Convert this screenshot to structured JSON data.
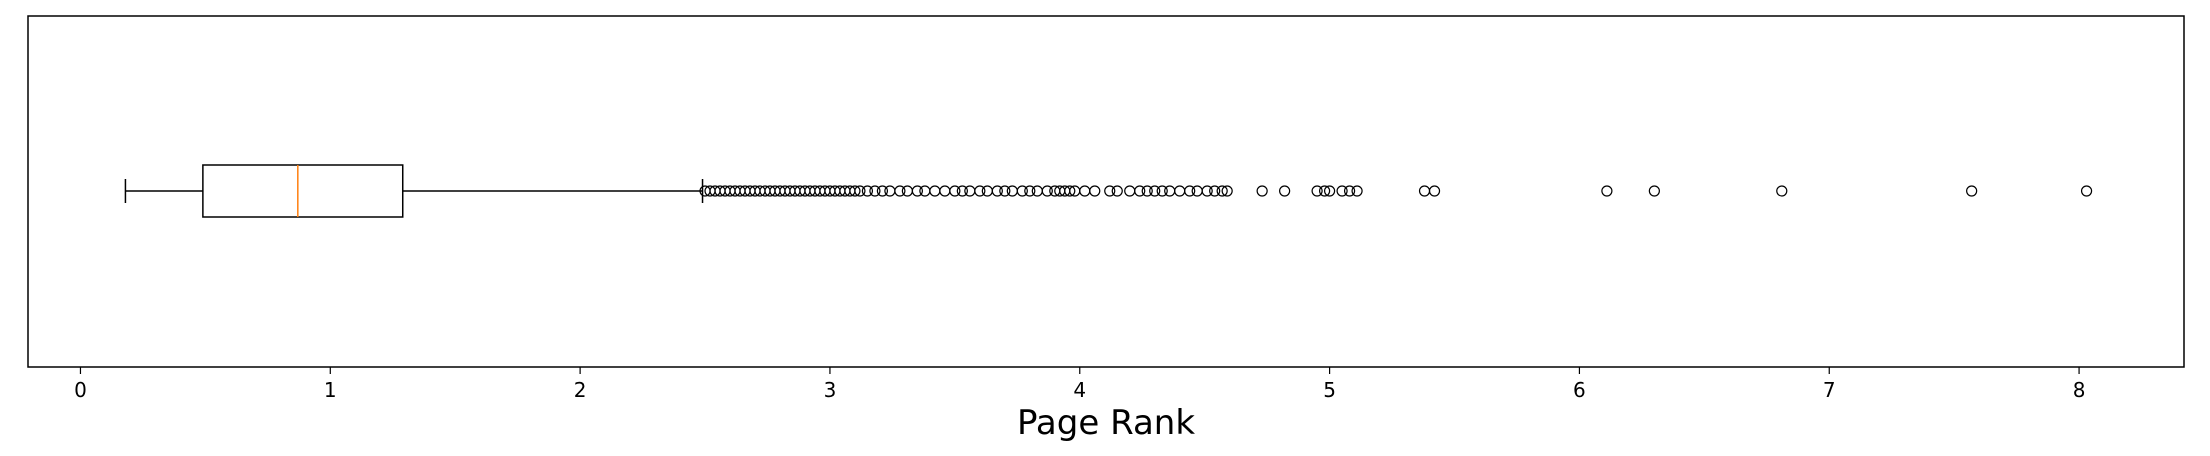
{
  "chart_data": {
    "type": "boxplot",
    "orientation": "horizontal",
    "xlabel": "Page Rank",
    "ylabel": "",
    "title": "",
    "xlim": [
      -0.21,
      8.42
    ],
    "xticks": [
      {
        "value": 0,
        "label": "0"
      },
      {
        "value": 1,
        "label": "1"
      },
      {
        "value": 2,
        "label": "2"
      },
      {
        "value": 3,
        "label": "3"
      },
      {
        "value": 4,
        "label": "4"
      },
      {
        "value": 5,
        "label": "5"
      },
      {
        "value": 6,
        "label": "6"
      },
      {
        "value": 7,
        "label": "7"
      },
      {
        "value": 8,
        "label": "8"
      }
    ],
    "grid": false,
    "box": {
      "whisker_low": 0.18,
      "q1": 0.49,
      "median": 0.87,
      "q3": 1.29,
      "whisker_high": 2.49
    },
    "colors": {
      "box": "#000000",
      "median": "#ff7f0e",
      "outlier": "#000000"
    },
    "outliers": [
      2.5,
      2.52,
      2.54,
      2.56,
      2.58,
      2.6,
      2.62,
      2.64,
      2.66,
      2.68,
      2.7,
      2.72,
      2.74,
      2.76,
      2.78,
      2.8,
      2.82,
      2.84,
      2.86,
      2.88,
      2.9,
      2.92,
      2.94,
      2.96,
      2.98,
      3.0,
      3.02,
      3.04,
      3.06,
      3.08,
      3.1,
      3.12,
      3.15,
      3.18,
      3.21,
      3.24,
      3.28,
      3.31,
      3.35,
      3.38,
      3.42,
      3.46,
      3.5,
      3.53,
      3.56,
      3.6,
      3.63,
      3.67,
      3.7,
      3.73,
      3.77,
      3.8,
      3.83,
      3.87,
      3.9,
      3.92,
      3.94,
      3.96,
      3.98,
      4.02,
      4.06,
      4.12,
      4.15,
      4.2,
      4.24,
      4.27,
      4.3,
      4.33,
      4.36,
      4.4,
      4.44,
      4.47,
      4.51,
      4.54,
      4.57,
      4.59,
      4.73,
      4.82,
      4.95,
      4.98,
      5.0,
      5.05,
      5.08,
      5.11,
      5.38,
      5.42,
      6.11,
      6.3,
      6.81,
      7.57,
      8.03
    ]
  }
}
